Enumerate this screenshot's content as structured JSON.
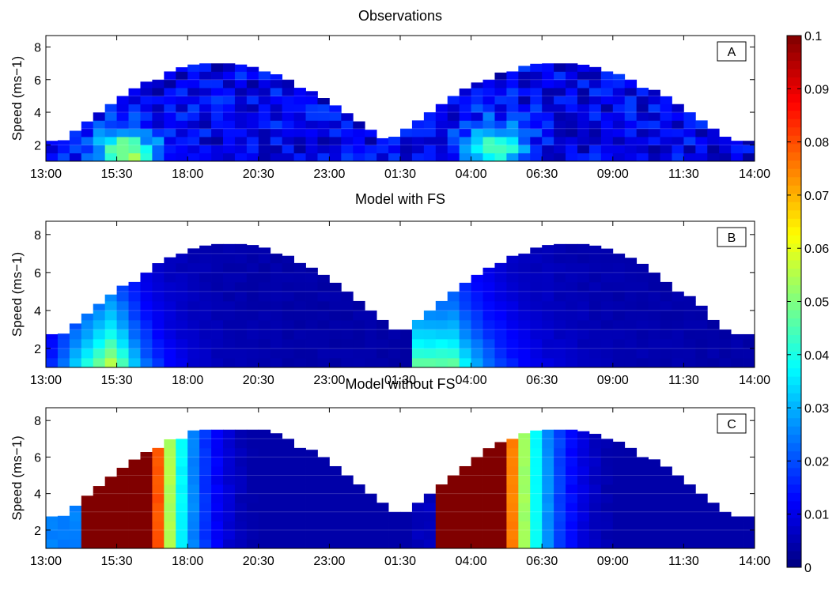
{
  "figure": {
    "colorbar": {
      "ticks": [
        "0",
        "0.01",
        "0.02",
        "0.03",
        "0.04",
        "0.05",
        "0.06",
        "0.07",
        "0.08",
        "0.09",
        "0.1"
      ],
      "range": [
        0,
        0.1
      ],
      "colormap": "jet"
    }
  },
  "chart_data": [
    {
      "type": "heatmap",
      "title": "Observations",
      "panel_label": "A",
      "ylabel": "Speed (ms−1)",
      "xticks": [
        "13:00",
        "15:30",
        "18:00",
        "20:30",
        "23:00",
        "01:30",
        "04:00",
        "06:30",
        "09:00",
        "11:30",
        "14:00"
      ],
      "yticks": [
        "2",
        "4",
        "6",
        "8"
      ],
      "ylim": [
        1,
        8.7
      ],
      "x_range_hours": [
        13,
        38
      ],
      "envelope": {
        "min_speed": 2,
        "peak1_time": "19:00",
        "peak1_speed": 6.8,
        "trough_time": "01:00",
        "peak2_time": "07:00",
        "peak2_speed": 6.8
      },
      "value_pattern": "noisy, mostly 0.005–0.02; patches 0.04–0.07 at low speeds around 15:00–16:30 and 03:30–05:30"
    },
    {
      "type": "heatmap",
      "title": "Model with FS",
      "panel_label": "B",
      "ylabel": "Speed (ms−1)",
      "xticks": [
        "13:00",
        "15:30",
        "18:00",
        "20:30",
        "23:00",
        "01:30",
        "04:00",
        "06:30",
        "09:00",
        "11:30",
        "14:00"
      ],
      "yticks": [
        "2",
        "4",
        "6",
        "8"
      ],
      "ylim": [
        1,
        8.7
      ],
      "x_range_hours": [
        13,
        38
      ],
      "envelope": {
        "min_speed": 2.5,
        "peak1_time": "19:30",
        "peak1_speed": 7.3,
        "trough_time": "01:30",
        "peak2_time": "07:30",
        "peak2_speed": 7.3
      },
      "value_pattern": "smooth; max ~0.06 at low speed around 15:30 and ~0.05 around 03:00, decaying to ~0.005 by 20:00 and 08:00"
    },
    {
      "type": "heatmap",
      "title": "Model without FS",
      "panel_label": "C",
      "ylabel": "Speed (ms−1)",
      "xticks": [
        "13:00",
        "15:30",
        "18:00",
        "20:30",
        "23:00",
        "01:30",
        "04:00",
        "06:30",
        "09:00",
        "11:30",
        "14:00"
      ],
      "yticks": [
        "2",
        "4",
        "6",
        "8"
      ],
      "ylim": [
        1,
        8.7
      ],
      "x_range_hours": [
        13,
        38
      ],
      "envelope": {
        "min_speed": 2.5,
        "peak1_time": "19:30",
        "peak1_speed": 7.5,
        "trough_time": "01:30",
        "peak2_time": "07:00",
        "peak2_speed": 7.3
      },
      "value_pattern": "saturated ≥0.1 from ~14:00 to 16:30 and ~02:30 to 05:00, decreasing through 0.06 around 17:30 / 05:30 to ~0.005 after 21:00 / 09:00"
    }
  ]
}
